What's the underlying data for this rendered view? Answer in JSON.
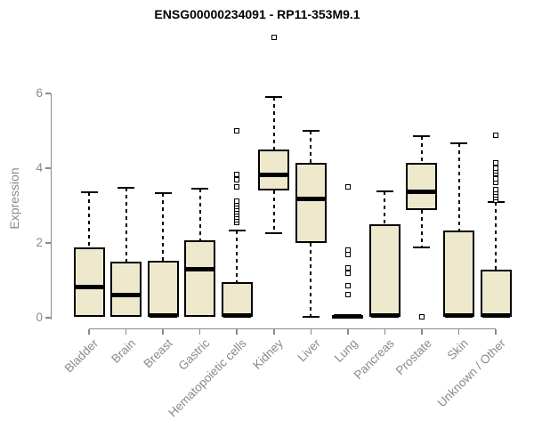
{
  "figure": {
    "title": "ENSG00000234091 - RP11-353M9.1",
    "y_axis_label": "Expression"
  },
  "chart_data": {
    "type": "boxplot",
    "title": "ENSG00000234091 - RP11-353M9.1",
    "xlabel": "",
    "ylabel": "Expression",
    "ylim": [
      0,
      6
    ],
    "ytick_labels": [
      "0",
      "2",
      "4",
      "6"
    ],
    "yticks": [
      0,
      2,
      4,
      6
    ],
    "grid": false,
    "legend": null,
    "categories": [
      "Bladder",
      "Brain",
      "Breast",
      "Gastric",
      "Hematopoietic cells",
      "Kidney",
      "Liver",
      "Lung",
      "Pancreas",
      "Prostate",
      "Skin",
      "Unknown / Other"
    ],
    "boxes": [
      {
        "category": "Bladder",
        "whisker_low": null,
        "q1": 0.02,
        "median": 0.81,
        "q3": 1.88,
        "whisker_high": 3.36,
        "outliers": []
      },
      {
        "category": "Brain",
        "whisker_low": null,
        "q1": 0.02,
        "median": 0.6,
        "q3": 1.5,
        "whisker_high": 3.48,
        "outliers": []
      },
      {
        "category": "Breast",
        "whisker_low": null,
        "q1": 0.02,
        "median": 0.07,
        "q3": 1.52,
        "whisker_high": 3.33,
        "outliers": []
      },
      {
        "category": "Gastric",
        "whisker_low": null,
        "q1": 0.02,
        "median": 1.29,
        "q3": 2.07,
        "whisker_high": 3.45,
        "outliers": []
      },
      {
        "category": "Hematopoietic cells",
        "whisker_low": null,
        "q1": 0.02,
        "median": 0.07,
        "q3": 0.95,
        "whisker_high": 2.33,
        "outliers": [
          2.55,
          2.62,
          2.69,
          2.76,
          2.83,
          2.9,
          2.98,
          3.05,
          3.12,
          3.5,
          3.7,
          3.83,
          5.0
        ]
      },
      {
        "category": "Kidney",
        "whisker_low": 2.26,
        "q1": 3.4,
        "median": 3.81,
        "q3": 4.5,
        "whisker_high": 5.9,
        "outliers": [
          7.5
        ]
      },
      {
        "category": "Liver",
        "whisker_low": 0.02,
        "q1": 2.0,
        "median": 3.19,
        "q3": 4.14,
        "whisker_high": 5.0,
        "outliers": []
      },
      {
        "category": "Lung",
        "whisker_low": null,
        "q1": 0.0,
        "median": 0.03,
        "q3": 0.08,
        "whisker_high": null,
        "outliers": [
          0.62,
          0.85,
          1.18,
          1.33,
          1.7,
          1.8,
          3.5
        ]
      },
      {
        "category": "Pancreas",
        "whisker_low": null,
        "q1": 0.02,
        "median": 0.07,
        "q3": 2.5,
        "whisker_high": 3.38,
        "outliers": []
      },
      {
        "category": "Prostate",
        "whisker_low": 1.88,
        "q1": 2.88,
        "median": 3.36,
        "q3": 4.14,
        "whisker_high": 4.86,
        "outliers": [
          0.02
        ]
      },
      {
        "category": "Skin",
        "whisker_low": null,
        "q1": 0.02,
        "median": 0.07,
        "q3": 2.33,
        "whisker_high": 4.67,
        "outliers": []
      },
      {
        "category": "Unknown / Other",
        "whisker_low": null,
        "q1": 0.02,
        "median": 0.07,
        "q3": 1.29,
        "whisker_high": 3.1,
        "outliers": [
          3.14,
          3.21,
          3.29,
          3.36,
          3.43,
          3.62,
          3.71,
          3.86,
          3.93,
          4.0,
          4.14,
          4.88
        ]
      }
    ],
    "colors": {
      "box_fill": "#EEE8CD",
      "box_border": "#000000",
      "median": "#000000",
      "whisker": "#000000",
      "axis": "#8a8a8a",
      "tick_label": "#8a8a8a",
      "title": "#000000",
      "background": "#ffffff"
    }
  }
}
